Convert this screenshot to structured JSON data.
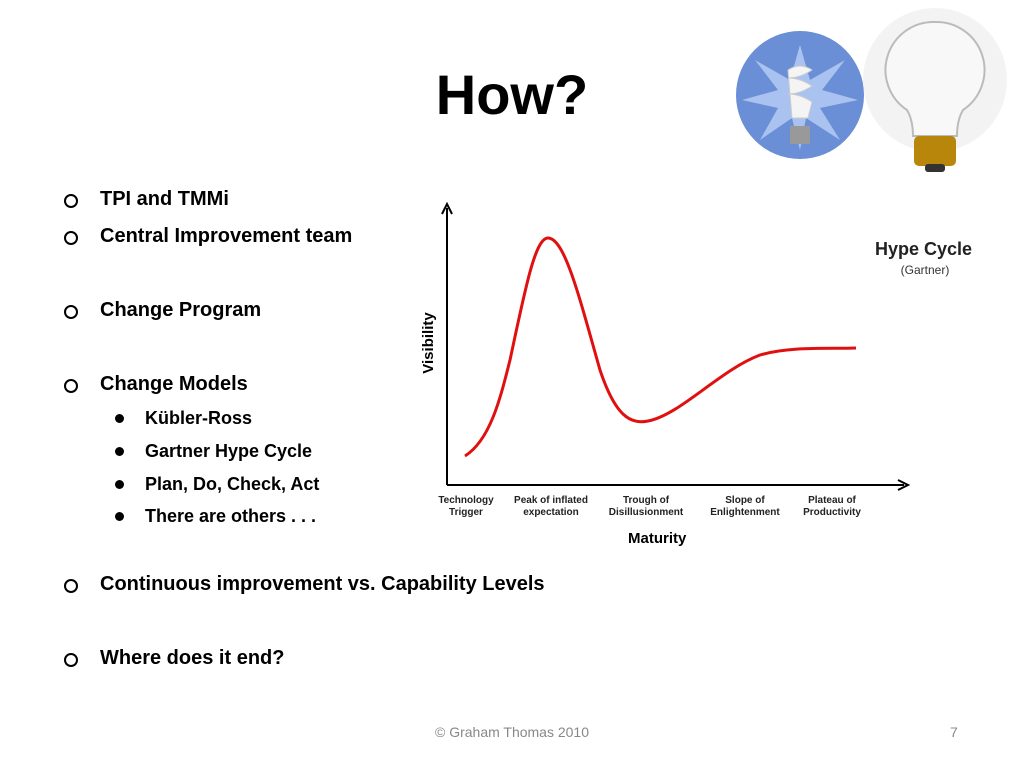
{
  "title": "How?",
  "bullets": [
    {
      "text": "TPI and TMMi"
    },
    {
      "text": "Central Improvement team"
    },
    {
      "text": "Change Program"
    },
    {
      "text": "Change Models",
      "sub": [
        "Kübler-Ross",
        "Gartner Hype Cycle",
        "Plan, Do, Check, Act",
        "There are others . . ."
      ]
    },
    {
      "text": "Continuous improvement vs. Capability Levels"
    },
    {
      "text": "Where does it end?"
    }
  ],
  "diagram": {
    "title": "Hype Cycle",
    "source": "(Gartner)",
    "y_axis": "Visibility",
    "x_axis": "Maturity",
    "phases": [
      [
        "Technology",
        "Trigger"
      ],
      [
        "Peak of inflated",
        "expectation"
      ],
      [
        "Trough of",
        "Disillusionment"
      ],
      [
        "Slope of",
        "Enlightenment"
      ],
      [
        "Plateau of",
        "Productivity"
      ]
    ]
  },
  "footer": "© Graham Thomas 2010",
  "page": "7"
}
